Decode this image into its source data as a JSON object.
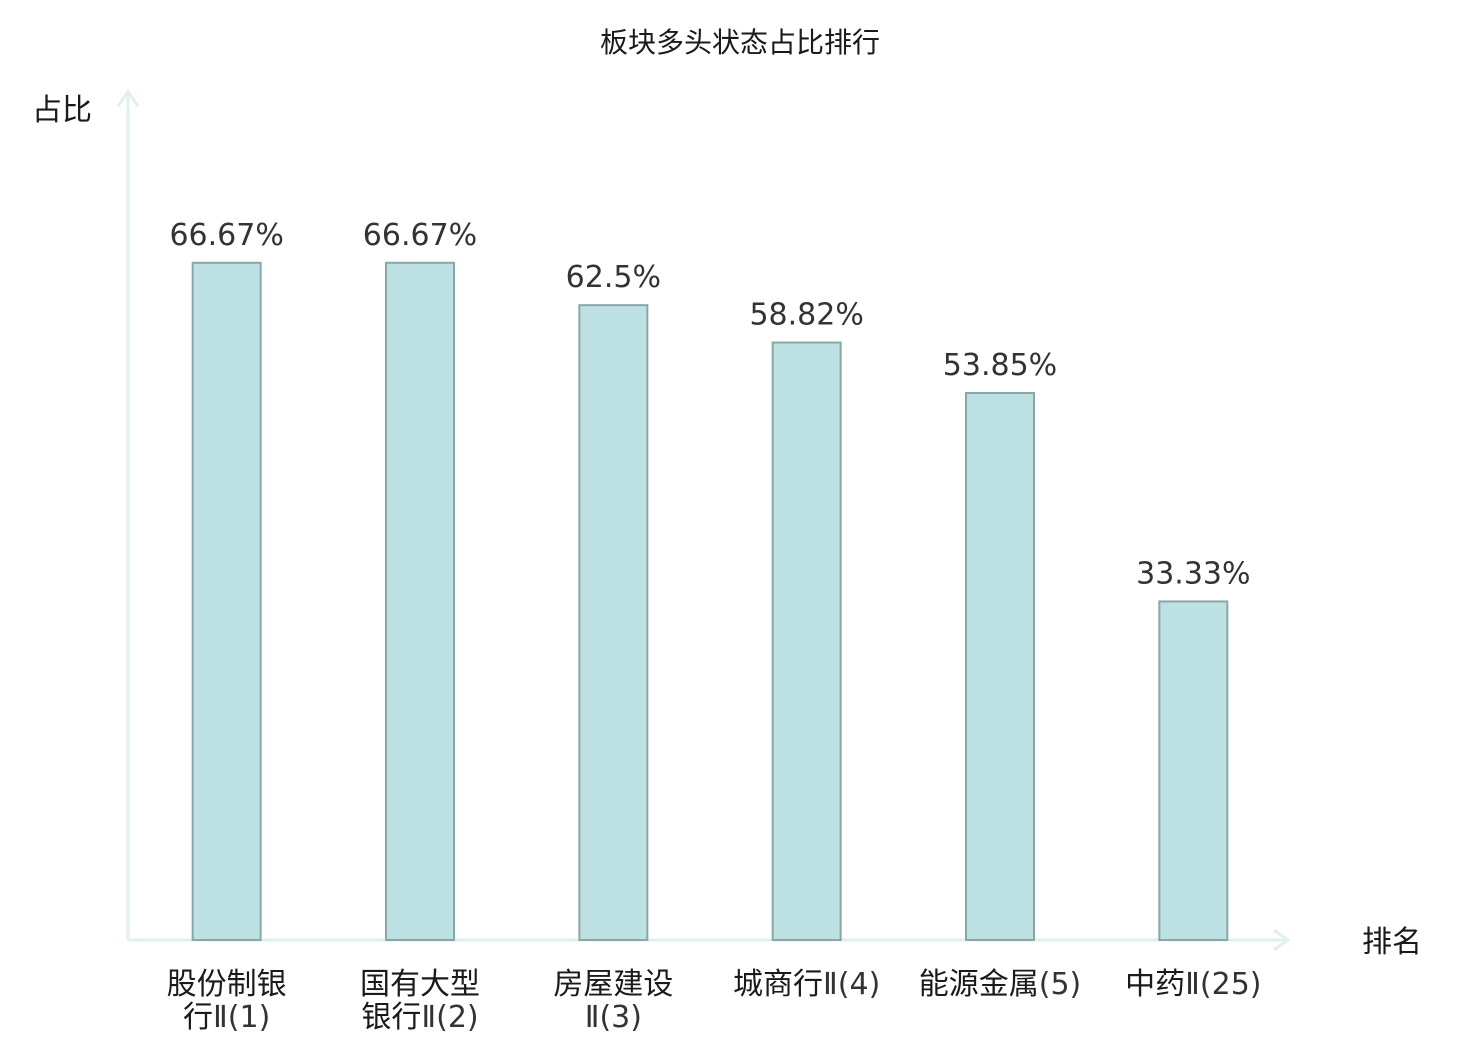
{
  "chart_data": {
    "type": "bar",
    "title": "板块多头状态占比排行",
    "ylabel": "占比",
    "xlabel": "排名",
    "ylim": [
      0,
      82.5
    ],
    "grid": false,
    "categories": [
      {
        "lines": [
          {
            "cn": "股份制银",
            "rank": ""
          },
          {
            "cn": "行",
            "rank": "Ⅱ(1)"
          }
        ],
        "highlight": false
      },
      {
        "lines": [
          {
            "cn": "国有大型",
            "rank": ""
          },
          {
            "cn": "银行",
            "rank": "Ⅱ(2)"
          }
        ],
        "highlight": false
      },
      {
        "lines": [
          {
            "cn": "房屋建设",
            "rank": ""
          },
          {
            "cn": "",
            "rank": "Ⅱ(3)"
          }
        ],
        "highlight": false
      },
      {
        "lines": [
          {
            "cn": "城商行",
            "rank": "Ⅱ(4)"
          }
        ],
        "highlight": false
      },
      {
        "lines": [
          {
            "cn": "能源金属",
            "rank": "(5)"
          }
        ],
        "highlight": false
      },
      {
        "lines": [
          {
            "cn": "中药",
            "rank": "Ⅱ(25)"
          }
        ],
        "highlight": true
      }
    ],
    "values": [
      66.67,
      66.67,
      62.5,
      58.82,
      53.85,
      33.33
    ],
    "value_labels": [
      "66.67%",
      "66.67%",
      "62.5%",
      "58.82%",
      "53.85%",
      "33.33%"
    ]
  },
  "colors": {
    "bar_fill": "#bde0e2",
    "bar_stroke": "#8aa7a8",
    "axis": "#dff0ee",
    "highlight_label": "#e8251f"
  }
}
